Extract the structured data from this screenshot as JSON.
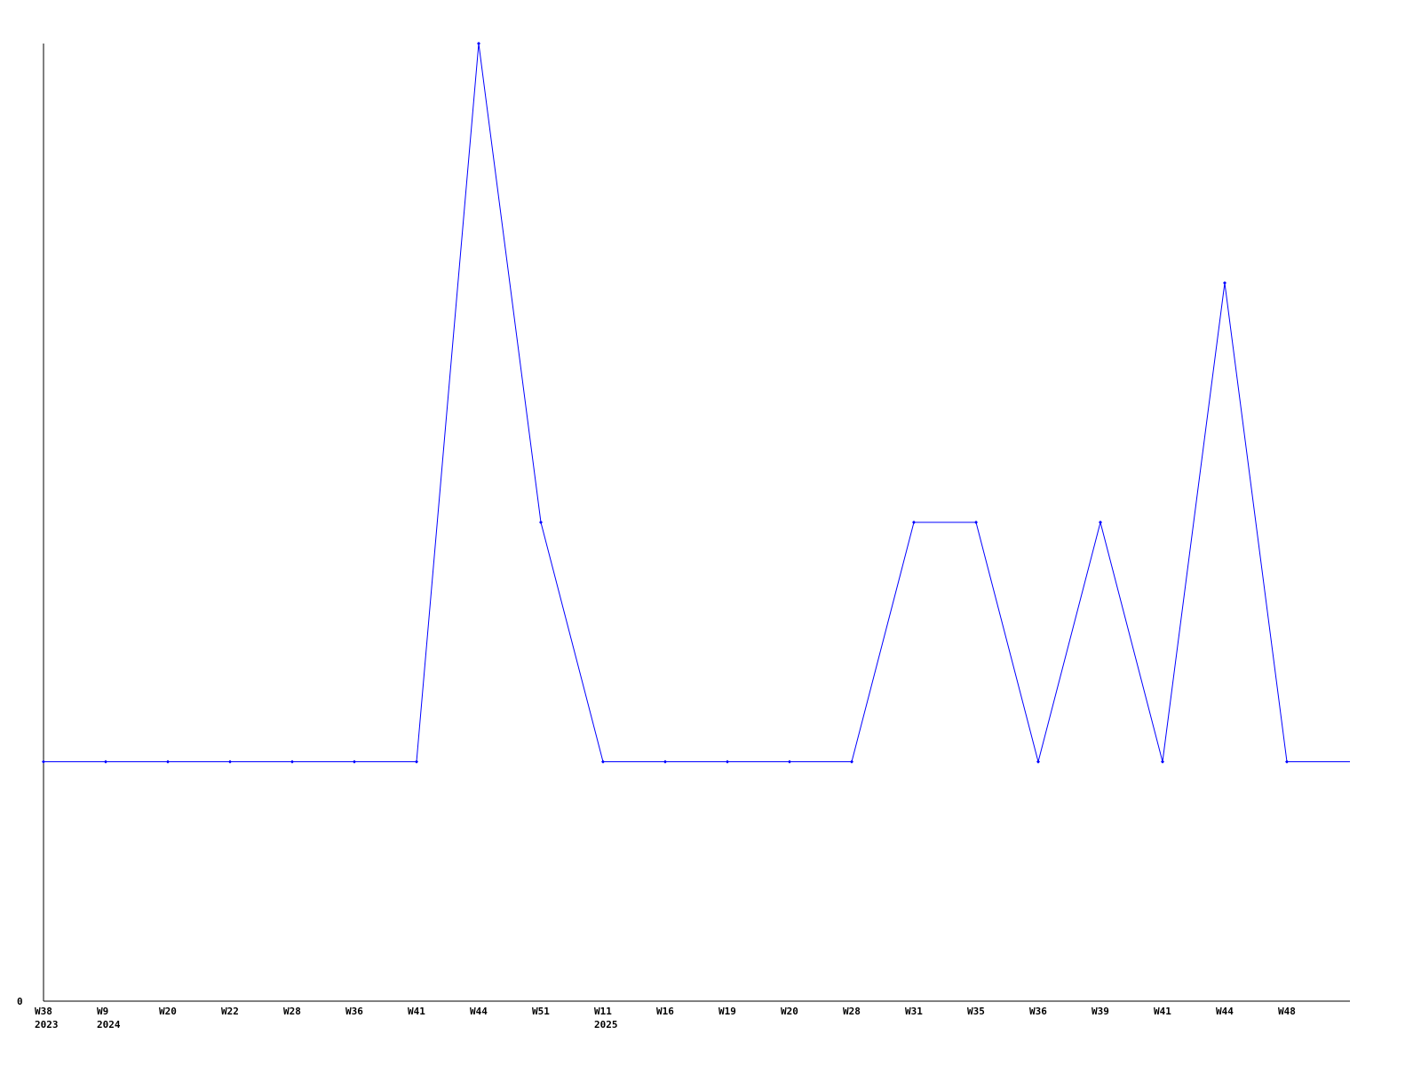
{
  "chart_data": {
    "type": "line",
    "title": "",
    "xlabel": "",
    "ylabel": "",
    "y_tick_labels": [
      "0"
    ],
    "ylim": [
      0,
      4
    ],
    "grid": false,
    "legend": "none",
    "line_color": "#0000ff",
    "axis_color": "#000000",
    "categories": [
      {
        "label": "W38",
        "year": "2023"
      },
      {
        "label": "W9",
        "year": "2024"
      },
      {
        "label": "W20",
        "year": ""
      },
      {
        "label": "W22",
        "year": ""
      },
      {
        "label": "W28",
        "year": ""
      },
      {
        "label": "W36",
        "year": ""
      },
      {
        "label": "W41",
        "year": ""
      },
      {
        "label": "W44",
        "year": ""
      },
      {
        "label": "W51",
        "year": ""
      },
      {
        "label": "W11",
        "year": "2025"
      },
      {
        "label": "W16",
        "year": ""
      },
      {
        "label": "W19",
        "year": ""
      },
      {
        "label": "W20",
        "year": ""
      },
      {
        "label": "W28",
        "year": ""
      },
      {
        "label": "W31",
        "year": ""
      },
      {
        "label": "W35",
        "year": ""
      },
      {
        "label": "W36",
        "year": ""
      },
      {
        "label": "W39",
        "year": ""
      },
      {
        "label": "W41",
        "year": ""
      },
      {
        "label": "W44",
        "year": ""
      },
      {
        "label": "W48",
        "year": ""
      }
    ],
    "values": [
      1,
      1,
      1,
      1,
      1,
      1,
      1,
      4,
      2,
      1,
      1,
      1,
      1,
      1,
      2,
      2,
      1,
      2,
      1,
      3,
      1
    ]
  }
}
